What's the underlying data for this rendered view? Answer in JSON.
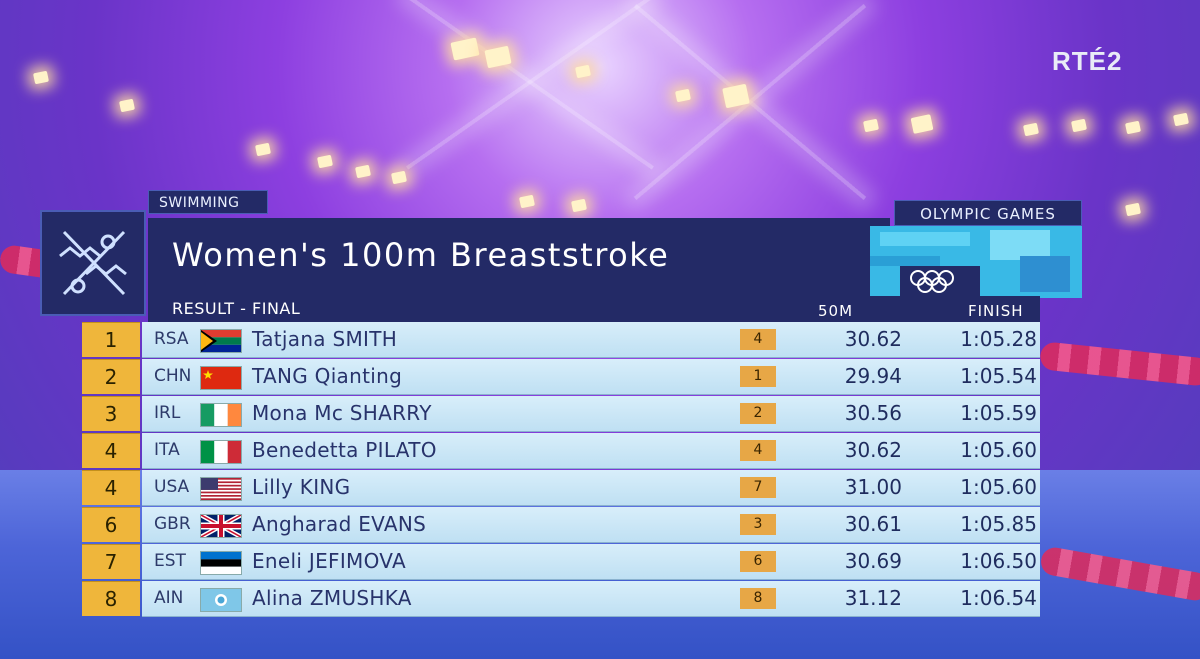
{
  "broadcaster": {
    "channel": "RTÉ2"
  },
  "header": {
    "sport_tab": "SWIMMING",
    "event_title": "Women's 100m Breaststroke",
    "brand_tab": "OLYMPIC GAMES",
    "result_label": "RESULT - FINAL",
    "col_split": "50M",
    "col_finish": "FINISH"
  },
  "results": [
    {
      "rank": "1",
      "noc": "RSA",
      "flag": "south-africa-flag",
      "name": "Tatjana SMITH",
      "split_rank": "4",
      "split": "30.62",
      "finish": "1:05.28"
    },
    {
      "rank": "2",
      "noc": "CHN",
      "flag": "china-flag",
      "name": "TANG Qianting",
      "split_rank": "1",
      "split": "29.94",
      "finish": "1:05.54"
    },
    {
      "rank": "3",
      "noc": "IRL",
      "flag": "ireland-flag",
      "name": "Mona Mc SHARRY",
      "split_rank": "2",
      "split": "30.56",
      "finish": "1:05.59"
    },
    {
      "rank": "4",
      "noc": "ITA",
      "flag": "italy-flag",
      "name": "Benedetta PILATO",
      "split_rank": "4",
      "split": "30.62",
      "finish": "1:05.60"
    },
    {
      "rank": "4",
      "noc": "USA",
      "flag": "usa-flag",
      "name": "Lilly KING",
      "split_rank": "7",
      "split": "31.00",
      "finish": "1:05.60"
    },
    {
      "rank": "6",
      "noc": "GBR",
      "flag": "uk-flag",
      "name": "Angharad EVANS",
      "split_rank": "3",
      "split": "30.61",
      "finish": "1:05.85"
    },
    {
      "rank": "7",
      "noc": "EST",
      "flag": "estonia-flag",
      "name": "Eneli JEFIMOVA",
      "split_rank": "6",
      "split": "30.69",
      "finish": "1:06.50"
    },
    {
      "rank": "8",
      "noc": "AIN",
      "flag": "ain-flag",
      "name": "Alina ZMUSHKA",
      "split_rank": "8",
      "split": "31.12",
      "finish": "1:06.54"
    }
  ],
  "colors": {
    "panel": "#232a66",
    "rank_gold": "#efb63b",
    "row_bg": "#d8eefa",
    "split_badge": "#e7a746"
  }
}
